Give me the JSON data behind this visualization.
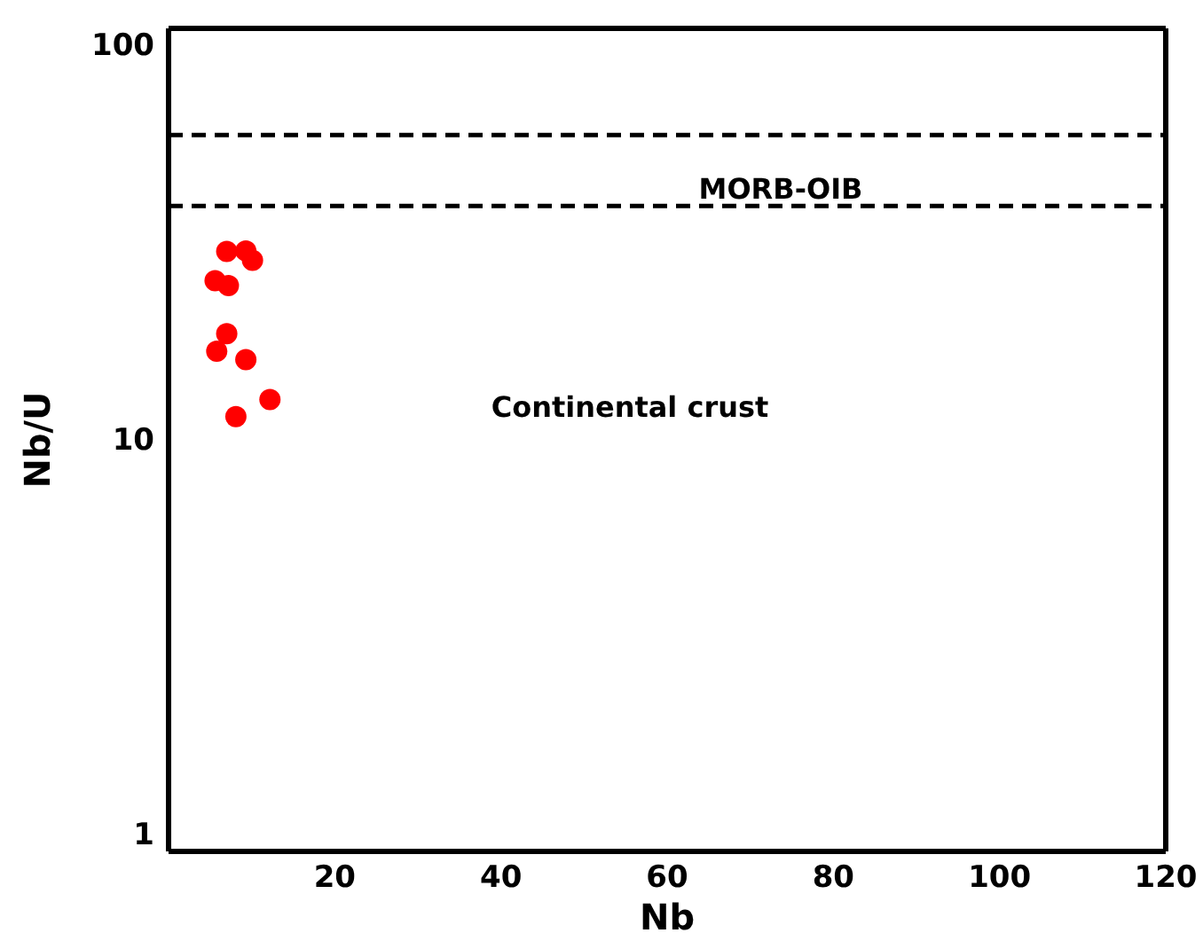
{
  "chart_data": {
    "type": "scatter",
    "xlabel": "Nb",
    "ylabel": "Nb/U",
    "log": "y",
    "xlim": [
      0,
      120
    ],
    "xticks": [
      20,
      40,
      60,
      80,
      100,
      120
    ],
    "ylim": [
      0.9,
      110
    ],
    "yticks": [
      1,
      10,
      100
    ],
    "marker": "circle",
    "series": [
      {
        "color": "#ff0000",
        "x": [
          7.0,
          9.3,
          10.1,
          5.6,
          7.2,
          7.0,
          5.8,
          9.3,
          12.2,
          8.1
        ],
        "values": [
          29.9,
          30,
          28.4,
          25.2,
          24.5,
          18.5,
          16.7,
          15.9,
          12.6,
          11.4
        ]
      }
    ],
    "ref_lines": [
      {
        "axis": "y",
        "value": 59,
        "line_style": "dashed",
        "color": "#000000"
      },
      {
        "axis": "y",
        "value": 39,
        "line_style": "dashed",
        "color": "#000000"
      }
    ],
    "annotations": [
      "MORB-OIB",
      "Continental crust"
    ]
  }
}
